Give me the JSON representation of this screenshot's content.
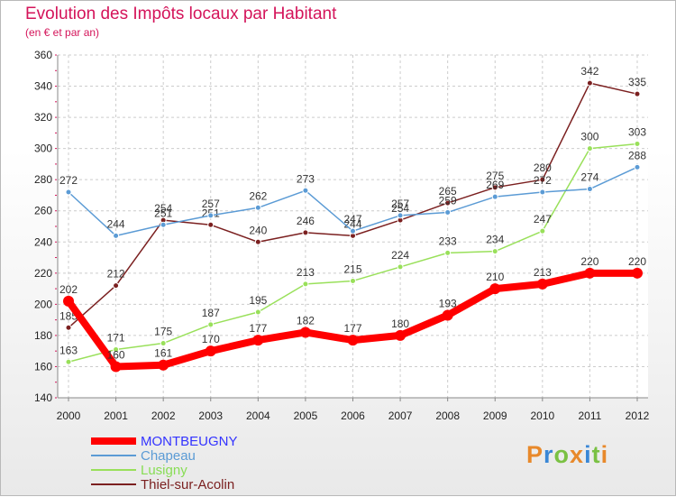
{
  "chart_data": {
    "type": "line",
    "title": "Evolution des Impôts locaux par Habitant",
    "subtitle": "(en € et par an)",
    "x": [
      "2000",
      "2001",
      "2002",
      "2003",
      "2004",
      "2005",
      "2006",
      "2007",
      "2008",
      "2009",
      "2010",
      "2011",
      "2012"
    ],
    "ylim": [
      140,
      360
    ],
    "yticks": [
      140,
      160,
      180,
      200,
      220,
      240,
      260,
      280,
      300,
      320,
      340,
      360
    ],
    "series": [
      {
        "name": "MONTBEUGNY",
        "color": "#ff0000",
        "legend_color": "#3333ff",
        "values": [
          202,
          160,
          161,
          170,
          177,
          182,
          177,
          180,
          193,
          210,
          213,
          220,
          220
        ]
      },
      {
        "name": "Chapeau",
        "color": "#5b9bd5",
        "legend_color": "#5b9bd5",
        "values": [
          272,
          244,
          251,
          257,
          262,
          273,
          247,
          257,
          259,
          269,
          272,
          274,
          288
        ]
      },
      {
        "name": "Lusigny",
        "color": "#99e05a",
        "legend_color": "#88dd55",
        "values": [
          163,
          171,
          175,
          187,
          195,
          213,
          215,
          224,
          233,
          234,
          247,
          300,
          303
        ]
      },
      {
        "name": "Thiel-sur-Acolin",
        "color": "#7b2020",
        "legend_color": "#7b2020",
        "values": [
          185,
          212,
          254,
          251,
          240,
          246,
          244,
          254,
          265,
          275,
          280,
          342,
          335
        ]
      }
    ],
    "grid": true,
    "legend_position": "bottom-left"
  },
  "logo": {
    "text": "Proxiti"
  }
}
